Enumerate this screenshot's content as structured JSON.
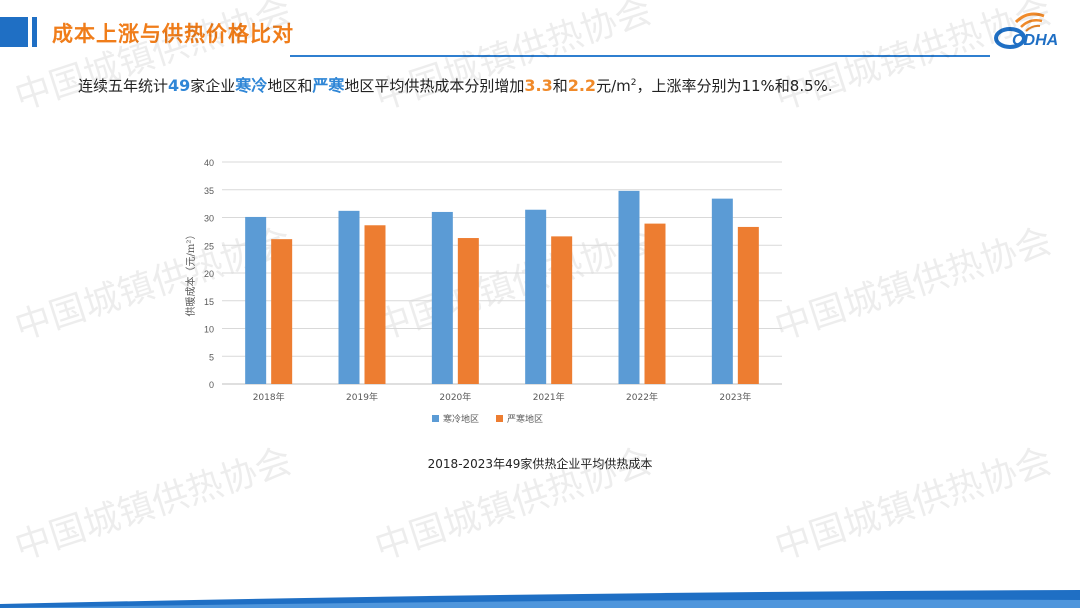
{
  "header": {
    "title": "成本上涨与供热价格比对",
    "logo_text": "CDHA"
  },
  "intro": {
    "p1": "连续五年统计",
    "n_companies": "49",
    "p2": "家企业",
    "region_cold": "寒冷",
    "p3": "地区和",
    "region_severe": "严寒",
    "p4": "地区平均供热成本分别增加",
    "inc_cold": "3.3",
    "p5": "和",
    "inc_severe": "2.2",
    "p6": "元/m",
    "sup": "2",
    "p7": "，上涨率分别为11%和8.5%."
  },
  "watermark": {
    "text": "中国城镇供热协会"
  },
  "caption": "2018-2023年49家供热企业平均供热成本",
  "colors": {
    "accent_blue": "#1f6fc4",
    "title_orange": "#f07d1a",
    "series_cold": "#5b9bd5",
    "series_severe": "#ed7d31"
  },
  "chart_data": {
    "type": "bar",
    "categories": [
      "2018年",
      "2019年",
      "2020年",
      "2021年",
      "2022年",
      "2023年"
    ],
    "series": [
      {
        "name": "寒冷地区",
        "values": [
          30.1,
          31.2,
          31.0,
          31.4,
          34.8,
          33.4
        ]
      },
      {
        "name": "严寒地区",
        "values": [
          26.1,
          28.6,
          26.3,
          26.6,
          28.9,
          28.3
        ]
      }
    ],
    "ylabel": "供暖成本（元/m²）",
    "ylim": [
      0,
      40
    ],
    "yticks": [
      0,
      5,
      10,
      15,
      20,
      25,
      30,
      35,
      40
    ],
    "grid": true,
    "legend": "bottom"
  }
}
